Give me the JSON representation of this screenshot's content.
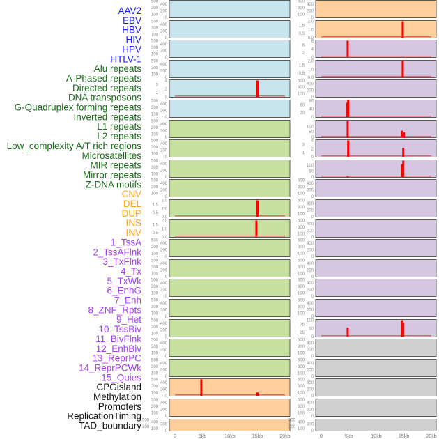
{
  "chart_data": {
    "type": "bar",
    "title": "",
    "xlabel": "",
    "ylabel": "",
    "x_range_kb": [
      0,
      20
    ],
    "x_ticks": [
      "0",
      "5kb",
      "10kb",
      "15kb",
      "20kb"
    ],
    "group_colors": {
      "virus": {
        "label": "#1a1aff",
        "panel": "#c8e4ec"
      },
      "repeat": {
        "label": "#1a6b1a",
        "panel": "#c8e0a0"
      },
      "sv": {
        "label": "#ffa520",
        "panel": "#ffd09c"
      },
      "chromatin": {
        "label": "#a43cf0",
        "panel": "#d6c6e2"
      },
      "other": {
        "label": "#111111",
        "panel": "#d0d0d0"
      }
    },
    "spike_color": "#ff0000",
    "columns": [
      [
        {
          "name": "AAV2",
          "group": "virus",
          "ticks": [
            0,
            100,
            200,
            300,
            400,
            500
          ],
          "ymax": 500,
          "spikes": []
        },
        {
          "name": "EBV",
          "group": "virus",
          "ticks": [
            0,
            100,
            200,
            300,
            400,
            500
          ],
          "ymax": 500,
          "spikes": []
        },
        {
          "name": "HBV",
          "group": "virus",
          "ticks": [
            0,
            100,
            200,
            300,
            400,
            500
          ],
          "ymax": 500,
          "spikes": []
        },
        {
          "name": "HIV",
          "group": "virus",
          "ticks": [
            0,
            100,
            200,
            300,
            400,
            500
          ],
          "ymax": 500,
          "spikes": []
        },
        {
          "name": "HPV",
          "group": "virus",
          "ticks": [
            0,
            1,
            2,
            3,
            4
          ],
          "ymax": 4,
          "baseline": true,
          "spikes": [
            {
              "x": 15.0,
              "y": 4
            }
          ]
        },
        {
          "name": "HTLV-1",
          "group": "virus",
          "ticks": [
            0,
            100,
            200,
            300,
            400,
            500
          ],
          "ymax": 500,
          "spikes": []
        },
        {
          "name": "Alu repeats",
          "group": "repeat",
          "ticks": [
            0,
            100,
            200,
            300,
            400,
            500
          ],
          "ymax": 500,
          "spikes": []
        },
        {
          "name": "A-Phased repeats",
          "group": "repeat",
          "ticks": [
            0,
            100,
            200,
            300,
            400,
            500
          ],
          "ymax": 500,
          "spikes": []
        },
        {
          "name": "Directed repeats",
          "group": "repeat",
          "ticks": [
            0,
            100,
            200,
            300,
            400,
            500
          ],
          "ymax": 500,
          "spikes": []
        },
        {
          "name": "DNA transposons",
          "group": "repeat",
          "ticks": [
            0,
            100,
            200,
            300,
            400,
            500
          ],
          "ymax": 500,
          "spikes": []
        },
        {
          "name": "G-Quadruplex forming repeats",
          "group": "repeat",
          "ticks": [
            "0.0",
            "0.5",
            "1.0",
            "1.5",
            "2.0"
          ],
          "ymax": 2,
          "baseline": true,
          "spikes": [
            {
              "x": 15.0,
              "y": 2
            }
          ]
        },
        {
          "name": "Inverted repeats",
          "group": "repeat",
          "ticks": [
            "0.0",
            "0.5",
            "1.0",
            "1.5",
            "2.0"
          ],
          "ymax": 2,
          "baseline": true,
          "spikes": [
            {
              "x": 14.8,
              "y": 2
            }
          ]
        },
        {
          "name": "L1 repeats",
          "group": "repeat",
          "ticks": [
            0,
            100,
            200,
            300,
            400,
            500
          ],
          "ymax": 500,
          "spikes": []
        },
        {
          "name": "L2 repeats",
          "group": "repeat",
          "ticks": [
            0,
            100,
            200,
            300,
            400,
            500
          ],
          "ymax": 500,
          "spikes": []
        },
        {
          "name": "Low_complexity A/T rich regions",
          "group": "repeat",
          "ticks": [
            0,
            100,
            200,
            300,
            400,
            500
          ],
          "ymax": 500,
          "spikes": []
        },
        {
          "name": "Microsatellites",
          "group": "repeat",
          "ticks": [
            0,
            100,
            200,
            300,
            400,
            500
          ],
          "ymax": 500,
          "spikes": []
        },
        {
          "name": "MIR repeats",
          "group": "repeat",
          "ticks": [
            0,
            100,
            200,
            300,
            400,
            500
          ],
          "ymax": 500,
          "spikes": []
        },
        {
          "name": "Mirror repeats",
          "group": "repeat",
          "ticks": [
            0,
            100,
            200,
            300,
            400,
            500
          ],
          "ymax": 500,
          "spikes": []
        },
        {
          "name": "Z-DNA motifs",
          "group": "repeat",
          "ticks": [
            0,
            100,
            200,
            300,
            400,
            500
          ],
          "ymax": 500,
          "spikes": []
        },
        {
          "name": "CNV",
          "group": "sv",
          "ticks": [
            0,
            100,
            200,
            300,
            400,
            500
          ],
          "ymax": 500,
          "baseline": true,
          "spikes": [
            {
              "x": 4.8,
              "y": 500
            },
            {
              "x": 15.0,
              "y": 100
            }
          ]
        },
        {
          "name": "DEL",
          "group": "sv",
          "ticks": [
            0,
            100,
            200,
            300,
            400,
            500
          ],
          "ymax": 500,
          "spikes": []
        },
        {
          "name": "DUP",
          "group": "sv",
          "ticks": [
            0,
            100,
            200,
            300,
            400,
            500
          ],
          "ymax": 500,
          "spikes": [],
          "short": true
        }
      ],
      [
        {
          "name": "INS",
          "group": "sv",
          "ticks": [
            0,
            100,
            200,
            300,
            400,
            500
          ],
          "ymax": 500,
          "spikes": []
        },
        {
          "name": "INV",
          "group": "sv",
          "ticks": [
            "0.0",
            "0.5",
            "1.0",
            "1.5",
            "2.0"
          ],
          "ymax": 2,
          "baseline": true,
          "spikes": [
            {
              "x": 14.8,
              "y": 2
            }
          ]
        },
        {
          "name": "1_TssA",
          "group": "chromatin",
          "ticks": [
            0,
            2,
            4,
            6,
            8
          ],
          "ymax": 8,
          "baseline": true,
          "spikes": [
            {
              "x": 4.8,
              "y": 8
            }
          ]
        },
        {
          "name": "2_TssAFlnk",
          "group": "chromatin",
          "ticks": [
            "0.0",
            "0.5",
            "1.0",
            "1.5",
            "2.0"
          ],
          "ymax": 2,
          "baseline": true,
          "spikes": [
            {
              "x": 14.8,
              "y": 2
            }
          ]
        },
        {
          "name": "3_TxFlnk",
          "group": "chromatin",
          "ticks": [
            0,
            100,
            200,
            300,
            400,
            500
          ],
          "ymax": 500,
          "spikes": []
        },
        {
          "name": "4_Tx",
          "group": "chromatin",
          "ticks": [
            0,
            20,
            40,
            60,
            80
          ],
          "ymax": 80,
          "baseline": true,
          "spikes": [
            {
              "x": 4.7,
              "y": 70
            },
            {
              "x": 4.9,
              "y": 85
            }
          ]
        },
        {
          "name": "5_TxWk",
          "group": "chromatin",
          "ticks": [
            0,
            50,
            100
          ],
          "ymax": 150,
          "baseline": true,
          "spikes": [
            {
              "x": 4.8,
              "y": 150
            },
            {
              "x": 14.7,
              "y": 60
            },
            {
              "x": 15.0,
              "y": 45
            }
          ]
        },
        {
          "name": "6_EnhG",
          "group": "chromatin",
          "ticks": [
            0,
            1,
            2,
            3,
            4
          ],
          "ymax": 4,
          "baseline": true,
          "spikes": [
            {
              "x": 4.9,
              "y": 4
            },
            {
              "x": 14.9,
              "y": 2.2
            }
          ]
        },
        {
          "name": "7_Enh",
          "group": "chromatin",
          "ticks": [
            0,
            50,
            100
          ],
          "ymax": 140,
          "baseline": true,
          "spikes": [
            {
              "x": 4.8,
              "y": 5
            },
            {
              "x": 14.7,
              "y": 110
            },
            {
              "x": 14.9,
              "y": 140
            }
          ]
        },
        {
          "name": "8_ZNF_Rpts",
          "group": "chromatin",
          "ticks": [
            0,
            100,
            200,
            300,
            400,
            500
          ],
          "ymax": 500,
          "spikes": []
        },
        {
          "name": "9_Het",
          "group": "chromatin",
          "ticks": [
            0,
            100,
            200,
            300,
            400,
            500
          ],
          "ymax": 500,
          "spikes": []
        },
        {
          "name": "10_TssBiv",
          "group": "chromatin",
          "ticks": [
            0,
            100,
            200,
            300,
            400,
            500
          ],
          "ymax": 500,
          "spikes": []
        },
        {
          "name": "11_BivFlnk",
          "group": "chromatin",
          "ticks": [
            0,
            100,
            200,
            300,
            400,
            500
          ],
          "ymax": 500,
          "spikes": []
        },
        {
          "name": "12_EnhBiv",
          "group": "chromatin",
          "ticks": [
            0,
            100,
            200,
            300,
            400,
            500
          ],
          "ymax": 500,
          "spikes": []
        },
        {
          "name": "13_ReprPC",
          "group": "chromatin",
          "ticks": [
            0,
            100,
            200,
            300,
            400,
            500
          ],
          "ymax": 500,
          "spikes": []
        },
        {
          "name": "14_ReprPCWk",
          "group": "chromatin",
          "ticks": [
            0,
            100,
            200,
            300,
            400,
            500
          ],
          "ymax": 500,
          "spikes": []
        },
        {
          "name": "15_Quies",
          "group": "chromatin",
          "ticks": [
            0,
            25,
            50,
            75,
            100
          ],
          "ymax": 100,
          "baseline": true,
          "spikes": [
            {
              "x": 4.8,
              "y": 55
            },
            {
              "x": 14.7,
              "y": 100
            },
            {
              "x": 14.9,
              "y": 85
            }
          ]
        },
        {
          "name": "CPGisland",
          "group": "other",
          "ticks": [
            0,
            100,
            200,
            300,
            400,
            500
          ],
          "ymax": 500,
          "spikes": []
        },
        {
          "name": "Methylation",
          "group": "other",
          "ticks": [
            0,
            100,
            200,
            300,
            400,
            500
          ],
          "ymax": 500,
          "spikes": []
        },
        {
          "name": "Promoters",
          "group": "other",
          "ticks": [
            0,
            100,
            200,
            300,
            400,
            500
          ],
          "ymax": 500,
          "spikes": []
        },
        {
          "name": "ReplicationTiming",
          "group": "other",
          "ticks": [
            0,
            100,
            200,
            300,
            400,
            500
          ],
          "ymax": 500,
          "spikes": []
        },
        {
          "name": "TAD_boundary",
          "group": "other",
          "ticks": [
            0,
            100,
            200,
            300,
            400,
            500
          ],
          "ymax": 500,
          "spikes": [],
          "short": true
        }
      ]
    ]
  }
}
